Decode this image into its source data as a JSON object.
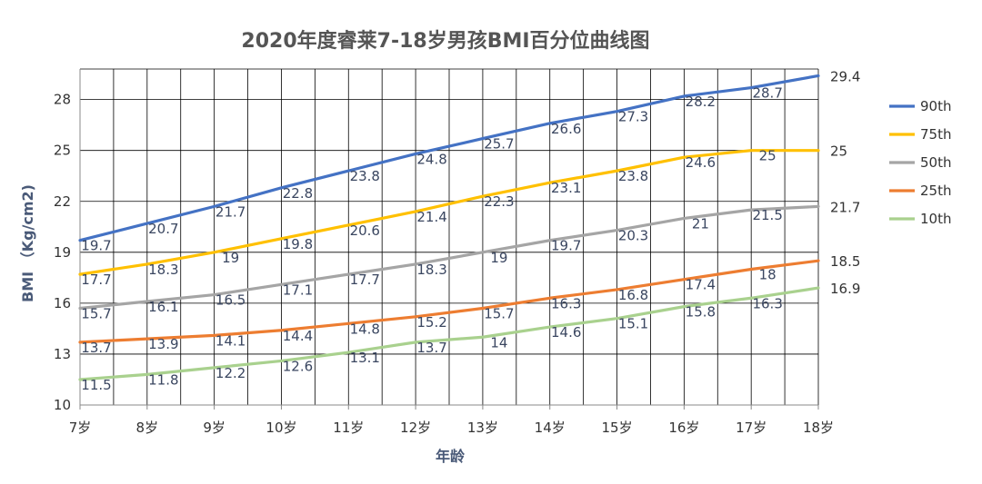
{
  "chart_data": {
    "type": "line",
    "title": "2020年度睿莱7-18岁男孩BMI百分位曲线图",
    "xlabel": "年龄",
    "ylabel": "BMI （Kg/cm2)",
    "categories": [
      "7岁",
      "8岁",
      "9岁",
      "10岁",
      "11岁",
      "12岁",
      "13岁",
      "14岁",
      "15岁",
      "16岁",
      "17岁",
      "18岁"
    ],
    "x": [
      7,
      8,
      9,
      10,
      11,
      12,
      13,
      14,
      15,
      16,
      17,
      18
    ],
    "yticks": [
      10,
      13,
      16,
      19,
      22,
      25,
      28
    ],
    "ylim": [
      10,
      29.8
    ],
    "grid": true,
    "legend_position": "right",
    "series": [
      {
        "name": "90th",
        "color": "#4472c4",
        "values": [
          19.7,
          20.7,
          21.7,
          22.8,
          23.8,
          24.8,
          25.7,
          26.6,
          27.3,
          28.2,
          28.7,
          29.4
        ]
      },
      {
        "name": "75th",
        "color": "#ffc000",
        "values": [
          17.7,
          18.3,
          19,
          19.8,
          20.6,
          21.4,
          22.3,
          23.1,
          23.8,
          24.6,
          25,
          25
        ]
      },
      {
        "name": "50th",
        "color": "#a5a5a5",
        "values": [
          15.7,
          16.1,
          16.5,
          17.1,
          17.7,
          18.3,
          19,
          19.7,
          20.3,
          21,
          21.5,
          21.7
        ]
      },
      {
        "name": "25th",
        "color": "#ed7d31",
        "values": [
          13.7,
          13.9,
          14.1,
          14.4,
          14.8,
          15.2,
          15.7,
          16.3,
          16.8,
          17.4,
          18,
          18.5
        ]
      },
      {
        "name": "10th",
        "color": "#a9d18e",
        "values": [
          11.5,
          11.8,
          12.2,
          12.6,
          13.1,
          13.7,
          14,
          14.6,
          15.1,
          15.8,
          16.3,
          16.9
        ]
      }
    ]
  }
}
